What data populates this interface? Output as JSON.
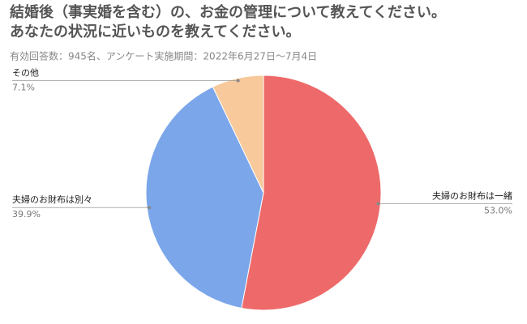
{
  "chart_data": {
    "type": "pie",
    "title": [
      "結婚後（事実婚を含む）の、お金の管理について教えてください。",
      "あなたの状況に近いものを教えてください。"
    ],
    "subtitle": "有効回答数：945名、アンケート実施期間：2022年6月27日〜7月4日",
    "categories": [
      "夫婦のお財布は一緒",
      "夫婦のお財布は別々",
      "その他"
    ],
    "values": [
      53.0,
      39.9,
      7.1
    ],
    "value_labels": [
      "53.0%",
      "39.9%",
      "7.1%"
    ],
    "colors": [
      "#ee6a6a",
      "#7ba6ea",
      "#f7c99b"
    ]
  }
}
